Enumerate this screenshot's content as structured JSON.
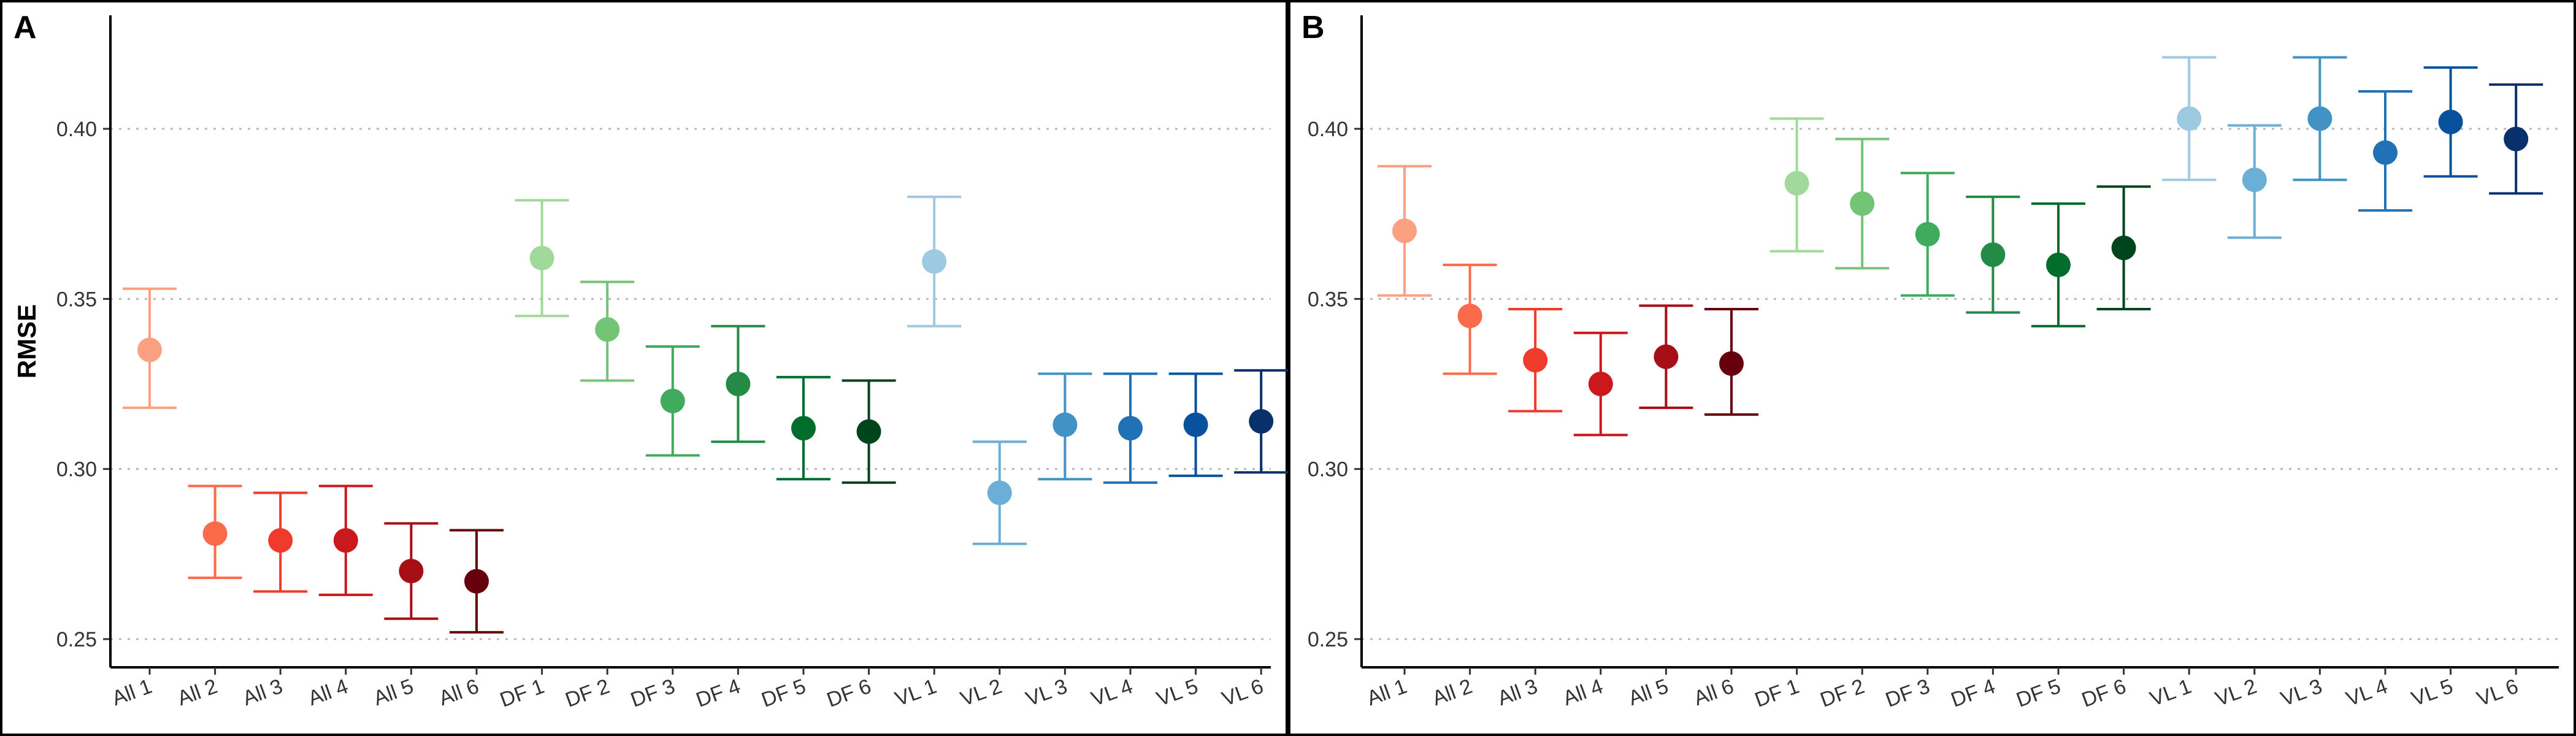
{
  "chart_data": [
    {
      "panel": "A",
      "type": "scatter",
      "ylabel": "RMSE",
      "ylim": [
        0.245,
        0.435
      ],
      "yticks": [
        "0.25",
        "0.30",
        "0.35",
        "0.40"
      ],
      "grid": "horizontal dotted",
      "categories": [
        "All 1",
        "All 2",
        "All 3",
        "All 4",
        "All 5",
        "All 6",
        "DF 1",
        "DF 2",
        "DF 3",
        "DF 4",
        "DF 5",
        "DF 6",
        "VL 1",
        "VL 2",
        "VL 3",
        "VL 4",
        "VL 5",
        "VL 6"
      ],
      "values": [
        0.335,
        0.281,
        0.279,
        0.279,
        0.27,
        0.267,
        0.362,
        0.341,
        0.32,
        0.325,
        0.312,
        0.311,
        0.361,
        0.293,
        0.313,
        0.312,
        0.313,
        0.314
      ],
      "lower": [
        0.318,
        0.268,
        0.264,
        0.263,
        0.256,
        0.252,
        0.345,
        0.326,
        0.304,
        0.308,
        0.297,
        0.296,
        0.342,
        0.278,
        0.297,
        0.296,
        0.298,
        0.299
      ],
      "upper": [
        0.353,
        0.295,
        0.293,
        0.295,
        0.284,
        0.282,
        0.379,
        0.355,
        0.336,
        0.342,
        0.327,
        0.326,
        0.38,
        0.308,
        0.328,
        0.328,
        0.328,
        0.329
      ],
      "colors": [
        "#FCA082",
        "#FB6A4A",
        "#EF3B2C",
        "#CB181D",
        "#A50F15",
        "#67000D",
        "#A1D99B",
        "#74C476",
        "#41AB5D",
        "#238B45",
        "#006D2C",
        "#00441B",
        "#9ECAE1",
        "#6BAED6",
        "#4292C6",
        "#2171B5",
        "#08519C",
        "#08306B"
      ]
    },
    {
      "panel": "B",
      "type": "scatter",
      "ylabel": "",
      "ylim": [
        0.245,
        0.435
      ],
      "yticks": [
        "0.25",
        "0.30",
        "0.35",
        "0.40"
      ],
      "grid": "horizontal dotted",
      "categories": [
        "All 1",
        "All 2",
        "All 3",
        "All 4",
        "All 5",
        "All 6",
        "DF 1",
        "DF 2",
        "DF 3",
        "DF 4",
        "DF 5",
        "DF 6",
        "VL 1",
        "VL 2",
        "VL 3",
        "VL 4",
        "VL 5",
        "VL 6"
      ],
      "values": [
        0.37,
        0.345,
        0.332,
        0.325,
        0.333,
        0.331,
        0.384,
        0.378,
        0.369,
        0.363,
        0.36,
        0.365,
        0.403,
        0.385,
        0.403,
        0.393,
        0.402,
        0.397
      ],
      "lower": [
        0.351,
        0.328,
        0.317,
        0.31,
        0.318,
        0.316,
        0.364,
        0.359,
        0.351,
        0.346,
        0.342,
        0.347,
        0.385,
        0.368,
        0.385,
        0.376,
        0.386,
        0.381
      ],
      "upper": [
        0.389,
        0.36,
        0.347,
        0.34,
        0.348,
        0.347,
        0.403,
        0.397,
        0.387,
        0.38,
        0.378,
        0.383,
        0.421,
        0.401,
        0.421,
        0.411,
        0.418,
        0.413
      ],
      "colors": [
        "#FCA082",
        "#FB6A4A",
        "#EF3B2C",
        "#CB181D",
        "#A50F15",
        "#67000D",
        "#A1D99B",
        "#74C476",
        "#41AB5D",
        "#238B45",
        "#006D2C",
        "#00441B",
        "#9ECAE1",
        "#6BAED6",
        "#4292C6",
        "#2171B5",
        "#08519C",
        "#08306B"
      ]
    }
  ]
}
